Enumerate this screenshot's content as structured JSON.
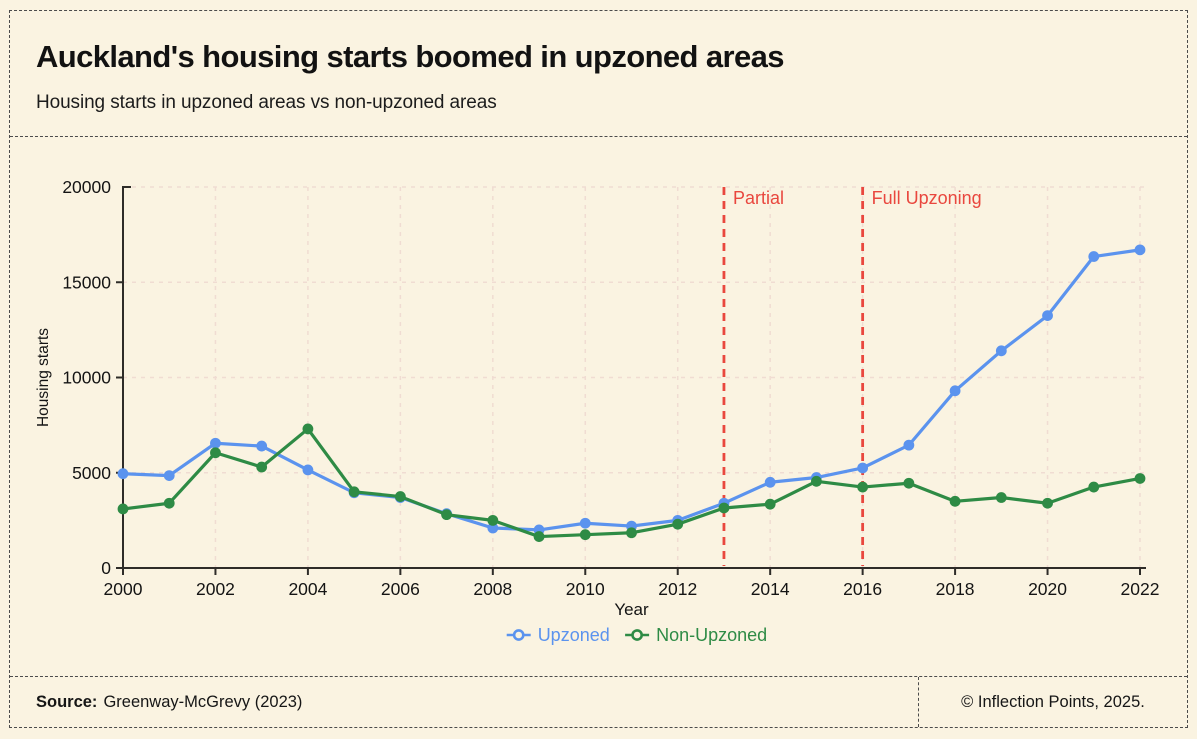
{
  "header": {
    "title": "Auckland's housing starts boomed in upzoned areas",
    "subtitle": "Housing starts in upzoned areas vs non-upzoned areas"
  },
  "footer": {
    "source_label": "Source:",
    "source_text": "Greenway-McGrevy (2023)",
    "credit": "© Inflection Points, 2025."
  },
  "chart_data": {
    "type": "line",
    "title": "",
    "xlabel": "Year",
    "ylabel": "Housing starts",
    "x": [
      2000,
      2001,
      2002,
      2003,
      2004,
      2005,
      2006,
      2007,
      2008,
      2009,
      2010,
      2011,
      2012,
      2013,
      2014,
      2015,
      2016,
      2017,
      2018,
      2019,
      2020,
      2021,
      2022
    ],
    "series": [
      {
        "name": "Upzoned",
        "color": "#5B93EE",
        "values": [
          4950,
          4850,
          6550,
          6400,
          5150,
          3950,
          3700,
          2850,
          2100,
          2000,
          2350,
          2200,
          2500,
          3400,
          4500,
          4750,
          5250,
          6450,
          9300,
          11400,
          13250,
          16350,
          16700
        ]
      },
      {
        "name": "Non-Upzoned",
        "color": "#2E8B45",
        "values": [
          3100,
          3400,
          6050,
          5300,
          7300,
          4000,
          3750,
          2800,
          2500,
          1650,
          1750,
          1850,
          2300,
          3150,
          3350,
          4550,
          4250,
          4450,
          3500,
          3700,
          3400,
          4250,
          4700
        ]
      }
    ],
    "ylim": [
      0,
      20000
    ],
    "yticks": [
      0,
      5000,
      10000,
      15000,
      20000
    ],
    "xticks": [
      2000,
      2002,
      2004,
      2006,
      2008,
      2010,
      2012,
      2014,
      2016,
      2018,
      2020,
      2022
    ],
    "grid": true,
    "legend_position": "bottom",
    "annotations": [
      {
        "x": 2013,
        "label": "Partial",
        "color": "#E9473E",
        "style": "dashed-vline"
      },
      {
        "x": 2016,
        "label": "Full Upzoning",
        "color": "#E9473E",
        "style": "dashed-vline"
      }
    ],
    "colors": {
      "background": "#FAF3E1",
      "grid": "#F0DCD2",
      "axis": "#2E2C28",
      "annotation": "#E9473E"
    }
  }
}
